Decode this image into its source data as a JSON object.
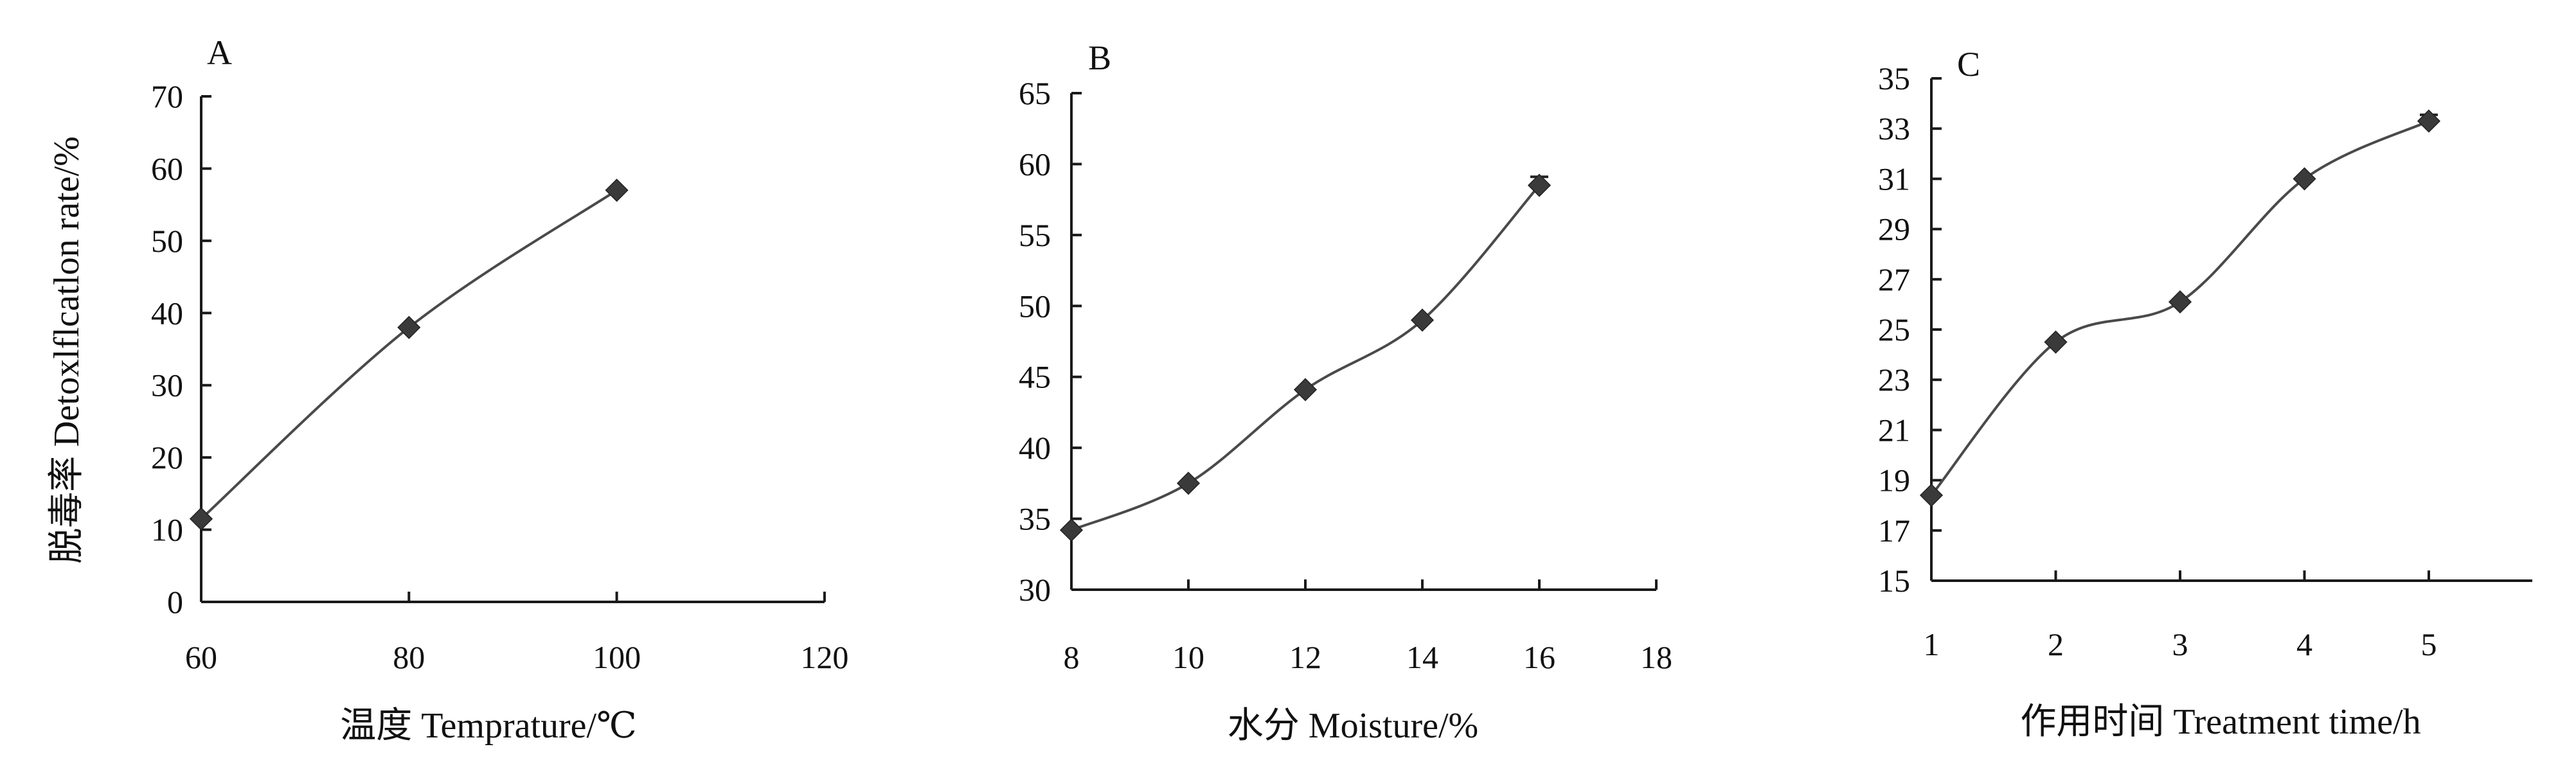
{
  "chart_data": [
    {
      "type": "line",
      "panel_label": "A",
      "xlabel": "温度 Temprature/℃",
      "ylabel": "脱毒率 Detoxlflcatlon rate/%",
      "xlim": [
        60,
        120
      ],
      "ylim": [
        0,
        70
      ],
      "xticks": [
        "60",
        "80",
        "100",
        "120"
      ],
      "yticks": [
        "0",
        "10",
        "20",
        "30",
        "40",
        "50",
        "60",
        "70"
      ],
      "x": [
        60,
        80,
        100
      ],
      "values": [
        11.5,
        38,
        57
      ],
      "grid": false,
      "smooth": true
    },
    {
      "type": "line",
      "panel_label": "B",
      "xlabel": "水分 Moisture/%",
      "xlim": [
        8,
        18
      ],
      "ylim": [
        30,
        65
      ],
      "xticks": [
        "8",
        "10",
        "12",
        "14",
        "16",
        "18"
      ],
      "yticks": [
        "30",
        "35",
        "40",
        "45",
        "50",
        "55",
        "60",
        "65"
      ],
      "x": [
        8,
        10,
        12,
        14,
        16
      ],
      "values": [
        34.2,
        37.5,
        44.1,
        49,
        58.5
      ],
      "error": [
        0,
        0,
        0,
        0,
        0.6
      ],
      "grid": false,
      "smooth": true
    },
    {
      "type": "line",
      "panel_label": "C",
      "xlabel": "作用时间 Treatment time/h",
      "ylim": [
        15,
        35
      ],
      "xticks": [
        "1",
        "2",
        "3",
        "4",
        "5"
      ],
      "yticks": [
        "15",
        "17",
        "19",
        "21",
        "23",
        "25",
        "27",
        "29",
        "31",
        "33",
        "35"
      ],
      "x": [
        1,
        2,
        3,
        4,
        5
      ],
      "values": [
        18.4,
        24.5,
        26.1,
        31,
        33.3
      ],
      "error": [
        0,
        0,
        0,
        0,
        0.25
      ],
      "grid": false,
      "smooth": true
    }
  ]
}
